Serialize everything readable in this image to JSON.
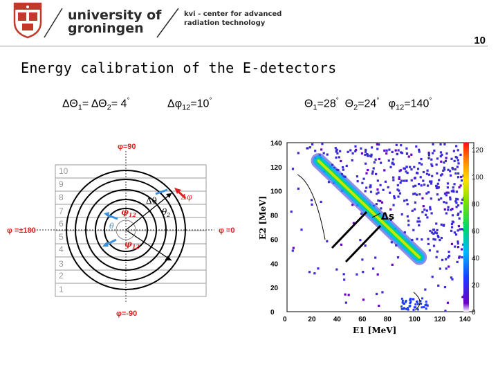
{
  "header": {
    "university_line1": "university of",
    "university_line2": "groningen",
    "kvi_line1": "kvi - center for advanced",
    "kvi_line2": "radiation technology",
    "page_number": "10"
  },
  "slide": {
    "title": "Energy calibration of the E-detectors",
    "formula_left_1": "ΔΘ",
    "formula_left_1_sub": "1",
    "formula_left_eq": "= ΔΘ",
    "formula_left_2_sub": "2",
    "formula_left_val": "= 4",
    "formula_left_deg": "°",
    "formula_mid": "Δφ",
    "formula_mid_sub": "12",
    "formula_mid_val": "=10",
    "formula_mid_deg": "°",
    "formula_right_t1": "Θ",
    "formula_right_t1_sub": "1",
    "formula_right_t1_val": "=28",
    "formula_right_t2": "Θ",
    "formula_right_t2_sub": "2",
    "formula_right_t2_val": "=24",
    "formula_right_p": "φ",
    "formula_right_p_sub": "12",
    "formula_right_p_val": "=140",
    "deg": "°"
  },
  "diagram": {
    "phi_top": "φ=90",
    "phi_bottom": "φ=-90",
    "phi_left": "φ =±180",
    "phi_right": "φ =0",
    "strip_labels": [
      "10",
      "9",
      "8",
      "7",
      "6",
      "5",
      "4",
      "3",
      "2",
      "1"
    ],
    "delta_theta": "Δθ",
    "delta_phi": "Δφ",
    "theta": "θ",
    "theta_sub": "2",
    "theta2_label": "θ",
    "phi1": "φ",
    "phi1_sub": "12",
    "phi2": "φ",
    "phi2_sub": "12"
  },
  "chart_data": {
    "type": "heatmap",
    "title": "",
    "xlabel": "E1 [MeV]",
    "ylabel": "E2 [MeV]",
    "xlim": [
      0,
      140
    ],
    "ylim": [
      0,
      140
    ],
    "x_ticks": [
      "0",
      "20",
      "40",
      "60",
      "80",
      "100",
      "120",
      "140"
    ],
    "y_ticks": [
      "0",
      "20",
      "40",
      "60",
      "80",
      "100",
      "120",
      "140"
    ],
    "colorbar_ticks": [
      "0",
      "20",
      "40",
      "60",
      "80",
      "100",
      "120"
    ],
    "colorbar_range": [
      0,
      120
    ],
    "band": {
      "description_sum_energy": 150,
      "e1_from": 25,
      "e1_to": 105
    },
    "annotation": "Δs"
  },
  "colors": {
    "arrow_blue": "#3a8fd8",
    "arrow_red": "#e02020",
    "label_red": "#e02020"
  }
}
